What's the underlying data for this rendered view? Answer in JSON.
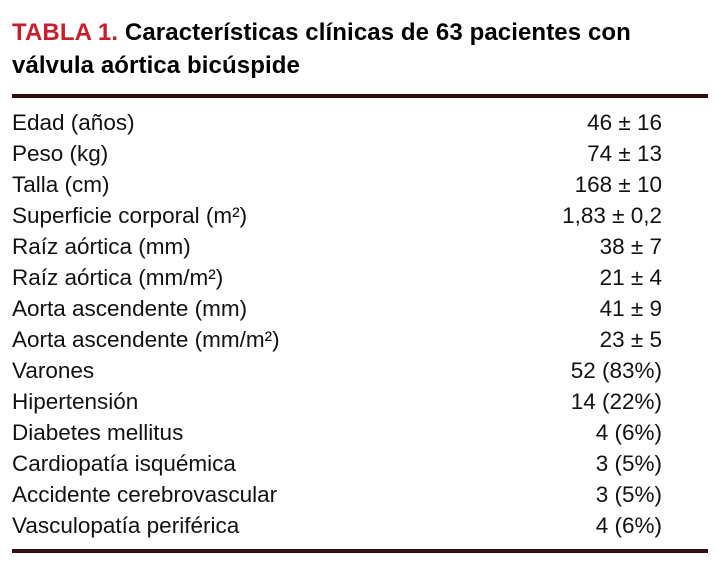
{
  "table": {
    "label": "TABLA 1.",
    "title": "Características clínicas de 63 pacientes con válvula aórtica bicúspide",
    "rows": [
      {
        "name": "Edad (años)",
        "value": "46 ± 16"
      },
      {
        "name": "Peso (kg)",
        "value": "74 ± 13"
      },
      {
        "name": "Talla (cm)",
        "value": "168 ± 10"
      },
      {
        "name": "Superficie corporal (m²)",
        "value": "1,83 ± 0,2"
      },
      {
        "name": "Raíz aórtica (mm)",
        "value": "38 ± 7"
      },
      {
        "name": "Raíz aórtica (mm/m²)",
        "value": "21 ± 4"
      },
      {
        "name": "Aorta ascendente (mm)",
        "value": "41 ± 9"
      },
      {
        "name": "Aorta ascendente (mm/m²)",
        "value": "23 ± 5"
      },
      {
        "name": "Varones",
        "value": "52 (83%)"
      },
      {
        "name": "Hipertensión",
        "value": "14 (22%)"
      },
      {
        "name": "Diabetes mellitus",
        "value": "4 (6%)"
      },
      {
        "name": "Cardiopatía isquémica",
        "value": "3 (5%)"
      },
      {
        "name": "Accidente cerebrovascular",
        "value": "3 (5%)"
      },
      {
        "name": "Vasculopatía periférica",
        "value": "4 (6%)"
      }
    ]
  },
  "colors": {
    "accent_red": "#c8202b",
    "rule": "#330e10",
    "text": "#121212"
  }
}
